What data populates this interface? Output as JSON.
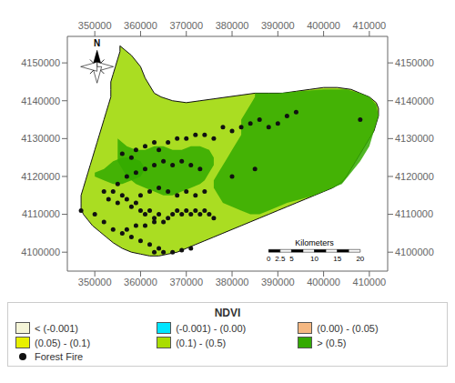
{
  "chart_data": {
    "type": "scatter",
    "xlim": [
      344000,
      414000
    ],
    "ylim": [
      4095000,
      4157000
    ],
    "xticks": [
      350000,
      360000,
      370000,
      380000,
      390000,
      400000,
      410000
    ],
    "yticks": [
      4100000,
      4110000,
      4120000,
      4130000,
      4140000,
      4150000
    ],
    "legend": "bottom",
    "legend_title": "NDVI",
    "legend_items": [
      {
        "label": "< (-0.001)",
        "color": "#f5f5d8"
      },
      {
        "label": "(-0.001) - (0.00)",
        "color": "#00e5ff"
      },
      {
        "label": "(0.00) - (0.05)",
        "color": "#f5b882"
      },
      {
        "label": "(0.05) - (0.1)",
        "color": "#e8f000"
      },
      {
        "label": "(0.1) - (0.5)",
        "color": "#aadd00"
      },
      {
        "label": "> (0.5)",
        "color": "#33aa00"
      }
    ],
    "series": [
      {
        "type": "polygon",
        "color": "#aadd22",
        "points": [
          [
            355500,
            4154500
          ],
          [
            358000,
            4152000
          ],
          [
            360000,
            4149000
          ],
          [
            361000,
            4146000
          ],
          [
            362000,
            4144000
          ],
          [
            363000,
            4142000
          ],
          [
            364500,
            4141000
          ],
          [
            367000,
            4140000
          ],
          [
            370000,
            4139500
          ],
          [
            373000,
            4140000
          ],
          [
            376000,
            4140500
          ],
          [
            379000,
            4141000
          ],
          [
            382000,
            4141500
          ],
          [
            385000,
            4142000
          ],
          [
            388000,
            4142000
          ],
          [
            391000,
            4142000
          ],
          [
            394000,
            4142500
          ],
          [
            397000,
            4143000
          ],
          [
            400000,
            4143500
          ],
          [
            403000,
            4143500
          ],
          [
            406000,
            4143000
          ],
          [
            408000,
            4142000
          ],
          [
            410000,
            4141000
          ],
          [
            411500,
            4139500
          ],
          [
            412000,
            4138000
          ],
          [
            412000,
            4136000
          ],
          [
            411500,
            4134000
          ],
          [
            411000,
            4132000
          ],
          [
            410000,
            4130000
          ],
          [
            409000,
            4128000
          ],
          [
            408000,
            4126000
          ],
          [
            407000,
            4124000
          ],
          [
            406000,
            4122000
          ],
          [
            405000,
            4120000
          ],
          [
            404000,
            4118500
          ],
          [
            402000,
            4117000
          ],
          [
            400000,
            4116000
          ],
          [
            398000,
            4115000
          ],
          [
            396000,
            4114000
          ],
          [
            394000,
            4113000
          ],
          [
            392000,
            4112000
          ],
          [
            390000,
            4111000
          ],
          [
            388000,
            4110000
          ],
          [
            386000,
            4109000
          ],
          [
            384000,
            4108000
          ],
          [
            382000,
            4107000
          ],
          [
            380000,
            4106000
          ],
          [
            378000,
            4105000
          ],
          [
            376000,
            4104000
          ],
          [
            374000,
            4103000
          ],
          [
            372000,
            4102000
          ],
          [
            370000,
            4101000
          ],
          [
            368000,
            4100000
          ],
          [
            366000,
            4099500
          ],
          [
            364000,
            4099000
          ],
          [
            362000,
            4099000
          ],
          [
            360000,
            4099500
          ],
          [
            358000,
            4100000
          ],
          [
            356000,
            4101000
          ],
          [
            354000,
            4102500
          ],
          [
            352500,
            4104000
          ],
          [
            351000,
            4105500
          ],
          [
            349500,
            4107000
          ],
          [
            348500,
            4108500
          ],
          [
            347500,
            4110000
          ],
          [
            347000,
            4111500
          ],
          [
            347000,
            4113000
          ],
          [
            347000,
            4115000
          ],
          [
            347500,
            4117000
          ],
          [
            348000,
            4119000
          ],
          [
            348500,
            4121000
          ],
          [
            349000,
            4123000
          ],
          [
            349500,
            4125000
          ],
          [
            350000,
            4127000
          ],
          [
            350500,
            4129000
          ],
          [
            351000,
            4131000
          ],
          [
            351500,
            4133000
          ],
          [
            352000,
            4135000
          ],
          [
            352500,
            4137000
          ],
          [
            353000,
            4139000
          ],
          [
            353500,
            4141000
          ],
          [
            353500,
            4143000
          ],
          [
            353500,
            4145000
          ],
          [
            354000,
            4147000
          ],
          [
            354500,
            4149000
          ],
          [
            355000,
            4151000
          ],
          [
            355500,
            4153000
          ],
          [
            355500,
            4154500
          ]
        ]
      },
      {
        "type": "polygon",
        "color": "#33aa00",
        "points": [
          [
            385000,
            4142000
          ],
          [
            390000,
            4142000
          ],
          [
            395000,
            4142500
          ],
          [
            400000,
            4143000
          ],
          [
            405000,
            4143000
          ],
          [
            408000,
            4142000
          ],
          [
            410000,
            4141000
          ],
          [
            411500,
            4139000
          ],
          [
            412000,
            4136000
          ],
          [
            411000,
            4132000
          ],
          [
            410000,
            4128000
          ],
          [
            408000,
            4124000
          ],
          [
            406000,
            4121000
          ],
          [
            404000,
            4118000
          ],
          [
            401000,
            4116500
          ],
          [
            398000,
            4115000
          ],
          [
            395000,
            4114000
          ],
          [
            392000,
            4113000
          ],
          [
            390000,
            4112000
          ],
          [
            388000,
            4111000
          ],
          [
            386000,
            4110000
          ],
          [
            384000,
            4110000
          ],
          [
            382000,
            4111000
          ],
          [
            380000,
            4112000
          ],
          [
            378000,
            4113000
          ],
          [
            377000,
            4115000
          ],
          [
            376000,
            4117000
          ],
          [
            376000,
            4119000
          ],
          [
            377000,
            4121000
          ],
          [
            378000,
            4123000
          ],
          [
            379000,
            4125000
          ],
          [
            380000,
            4127000
          ],
          [
            381000,
            4129000
          ],
          [
            382000,
            4131000
          ],
          [
            382000,
            4133000
          ],
          [
            382000,
            4135000
          ],
          [
            383000,
            4137000
          ],
          [
            384000,
            4139000
          ],
          [
            385000,
            4141000
          ],
          [
            385000,
            4142000
          ]
        ]
      },
      {
        "type": "polygon",
        "color": "#33aa00",
        "points": [
          [
            355000,
            4130000
          ],
          [
            357000,
            4128000
          ],
          [
            359000,
            4127000
          ],
          [
            361000,
            4127000
          ],
          [
            363000,
            4128000
          ],
          [
            365000,
            4128000
          ],
          [
            367000,
            4127000
          ],
          [
            369000,
            4127000
          ],
          [
            371000,
            4128000
          ],
          [
            373000,
            4128000
          ],
          [
            375000,
            4127000
          ],
          [
            376000,
            4125000
          ],
          [
            376000,
            4123000
          ],
          [
            375000,
            4121000
          ],
          [
            374000,
            4119000
          ],
          [
            373000,
            4118000
          ],
          [
            371000,
            4117000
          ],
          [
            369000,
            4116000
          ],
          [
            367000,
            4115000
          ],
          [
            365000,
            4115000
          ],
          [
            363000,
            4116000
          ],
          [
            361000,
            4117000
          ],
          [
            359000,
            4118000
          ],
          [
            357000,
            4120000
          ],
          [
            356000,
            4122000
          ],
          [
            355000,
            4124000
          ],
          [
            355000,
            4126000
          ],
          [
            355000,
            4128000
          ],
          [
            355000,
            4130000
          ]
        ]
      },
      {
        "type": "polygon",
        "color": "#33aa00",
        "points": [
          [
            350000,
            4120000
          ],
          [
            352000,
            4119000
          ],
          [
            354000,
            4118000
          ],
          [
            356000,
            4118000
          ],
          [
            358000,
            4119000
          ],
          [
            360000,
            4120000
          ],
          [
            361000,
            4122000
          ],
          [
            360000,
            4124000
          ],
          [
            358000,
            4125000
          ],
          [
            356000,
            4125000
          ],
          [
            354000,
            4124000
          ],
          [
            352000,
            4122000
          ],
          [
            350000,
            4121000
          ],
          [
            350000,
            4120000
          ]
        ]
      },
      {
        "name": "Forest Fire",
        "type": "scatter",
        "color": "#111111",
        "points": [
          [
            356000,
            4126000
          ],
          [
            358000,
            4125000
          ],
          [
            359000,
            4127000
          ],
          [
            361000,
            4128000
          ],
          [
            363000,
            4129000
          ],
          [
            364000,
            4127000
          ],
          [
            366000,
            4129000
          ],
          [
            368000,
            4130000
          ],
          [
            370000,
            4130000
          ],
          [
            372000,
            4131000
          ],
          [
            374000,
            4131000
          ],
          [
            376000,
            4130000
          ],
          [
            378000,
            4133000
          ],
          [
            380000,
            4132000
          ],
          [
            382000,
            4133000
          ],
          [
            384000,
            4134000
          ],
          [
            386000,
            4135000
          ],
          [
            388000,
            4133000
          ],
          [
            390000,
            4134000
          ],
          [
            392000,
            4136000
          ],
          [
            394000,
            4137000
          ],
          [
            352000,
            4116000
          ],
          [
            353000,
            4114000
          ],
          [
            354000,
            4116000
          ],
          [
            355000,
            4113000
          ],
          [
            356000,
            4115000
          ],
          [
            357000,
            4114000
          ],
          [
            358000,
            4112000
          ],
          [
            359000,
            4113000
          ],
          [
            360000,
            4111000
          ],
          [
            361000,
            4110000
          ],
          [
            362000,
            4111000
          ],
          [
            363000,
            4109000
          ],
          [
            364000,
            4110000
          ],
          [
            365000,
            4108000
          ],
          [
            366000,
            4109000
          ],
          [
            367000,
            4110000
          ],
          [
            368000,
            4111000
          ],
          [
            369000,
            4110000
          ],
          [
            370000,
            4111000
          ],
          [
            371000,
            4110000
          ],
          [
            372000,
            4111000
          ],
          [
            373000,
            4110000
          ],
          [
            374000,
            4111000
          ],
          [
            375000,
            4110000
          ],
          [
            376000,
            4109000
          ],
          [
            360000,
            4115000
          ],
          [
            362000,
            4116000
          ],
          [
            364000,
            4117000
          ],
          [
            366000,
            4116000
          ],
          [
            368000,
            4115000
          ],
          [
            370000,
            4116000
          ],
          [
            372000,
            4115000
          ],
          [
            374000,
            4116000
          ],
          [
            350000,
            4110000
          ],
          [
            352000,
            4108000
          ],
          [
            354000,
            4106000
          ],
          [
            356000,
            4105000
          ],
          [
            358000,
            4104000
          ],
          [
            360000,
            4103000
          ],
          [
            362000,
            4102000
          ],
          [
            364000,
            4101000
          ],
          [
            363000,
            4100000
          ],
          [
            365000,
            4100000
          ],
          [
            367000,
            4100000
          ],
          [
            369000,
            4100500
          ],
          [
            371000,
            4101000
          ],
          [
            357000,
            4106000
          ],
          [
            359000,
            4107000
          ],
          [
            361000,
            4107000
          ],
          [
            363000,
            4108000
          ],
          [
            355000,
            4118000
          ],
          [
            357000,
            4120000
          ],
          [
            359000,
            4121000
          ],
          [
            361000,
            4122000
          ],
          [
            363000,
            4123000
          ],
          [
            365000,
            4124000
          ],
          [
            367000,
            4123000
          ],
          [
            369000,
            4124000
          ],
          [
            371000,
            4123000
          ],
          [
            373000,
            4122000
          ],
          [
            380000,
            4120000
          ],
          [
            385000,
            4122000
          ],
          [
            408000,
            4135000
          ],
          [
            347000,
            4111000
          ]
        ]
      }
    ],
    "scale_bar": {
      "ticks": [
        0,
        2.5,
        5,
        10,
        15,
        20
      ],
      "label": "Kilometers"
    },
    "north_arrow": "N"
  }
}
